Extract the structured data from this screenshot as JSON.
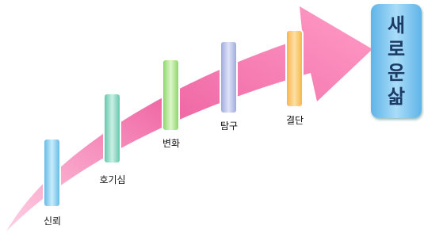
{
  "stages": [
    {
      "label": "신뢰"
    },
    {
      "label": "호기심"
    },
    {
      "label": "변화"
    },
    {
      "label": "탐구"
    },
    {
      "label": "결단"
    }
  ],
  "goal": {
    "label": "새로운 삶"
  }
}
